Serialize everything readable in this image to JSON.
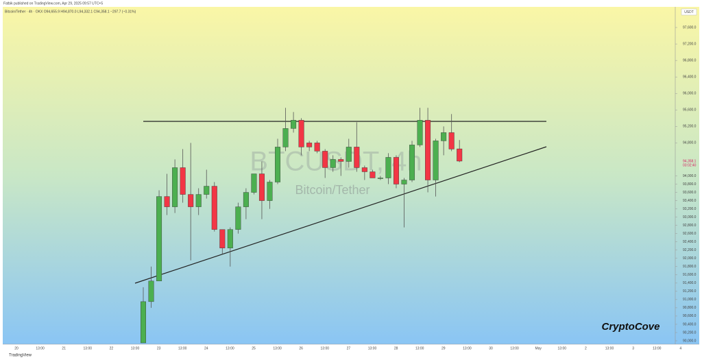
{
  "chart_data": {
    "type": "candlestick",
    "header": "Fatbik published on TradingView.com, Apr 29, 2025 09:57 UTC+5",
    "subtitle": "Bitcoin/Tether · 4h · OKX  O94,655.9  H94,870.0  L94,332.1  C94,358.1  −297.7 (−0.31%)",
    "watermark": "BTCUSDT, 4h",
    "watermark_name": "Bitcoin/Tether",
    "currency": "USDT",
    "last_price": "94,358.1",
    "countdown": "03:02:40",
    "signature": "CryptoCove",
    "footer": "TradingView",
    "up_color": "#4caf50",
    "down_color": "#f23645",
    "ylim": [
      89950,
      98100
    ],
    "yticks": [
      {
        "value": 97600,
        "label": "97,600.0"
      },
      {
        "value": 97200,
        "label": "97,200.0"
      },
      {
        "value": 96800,
        "label": "96,800.0"
      },
      {
        "value": 96400,
        "label": "96,400.0"
      },
      {
        "value": 96000,
        "label": "96,000.0"
      },
      {
        "value": 95600,
        "label": "95,600.0"
      },
      {
        "value": 95200,
        "label": "95,200.0"
      },
      {
        "value": 94800,
        "label": "94,800.0"
      },
      {
        "value": 94000,
        "label": "94,000.0"
      },
      {
        "value": 93800,
        "label": "93,800.0"
      },
      {
        "value": 93600,
        "label": "93,600.0"
      },
      {
        "value": 93400,
        "label": "93,400.0"
      },
      {
        "value": 93200,
        "label": "93,200.0"
      },
      {
        "value": 93000,
        "label": "93,000.0"
      },
      {
        "value": 92800,
        "label": "92,800.0"
      },
      {
        "value": 92600,
        "label": "92,600.0"
      },
      {
        "value": 92400,
        "label": "92,400.0"
      },
      {
        "value": 92200,
        "label": "92,200.0"
      },
      {
        "value": 92000,
        "label": "92,000.0"
      },
      {
        "value": 91800,
        "label": "91,800.0"
      },
      {
        "value": 91600,
        "label": "91,600.0"
      },
      {
        "value": 91400,
        "label": "91,400.0"
      },
      {
        "value": 91200,
        "label": "91,200.0"
      },
      {
        "value": 91000,
        "label": "91,000.0"
      },
      {
        "value": 90800,
        "label": "90,800.0"
      },
      {
        "value": 90600,
        "label": "90,600.0"
      },
      {
        "value": 90400,
        "label": "90,400.0"
      },
      {
        "value": 90200,
        "label": "90,200.0"
      },
      {
        "value": 90000,
        "label": "90,000.0"
      }
    ],
    "xlabels": [
      "20",
      "13:00",
      "21",
      "13:00",
      "22",
      "13:00",
      "23",
      "13:00",
      "24",
      "13:00",
      "25",
      "13:00",
      "26",
      "13:00",
      "27",
      "13:00",
      "28",
      "13:00",
      "29",
      "13:00",
      "30",
      "13:00",
      "May",
      "13:00",
      "2",
      "13:00",
      "3",
      "13:00",
      "4"
    ],
    "open": [
      89950,
      90950,
      91450,
      93500,
      93250,
      94200,
      93550,
      93250,
      93550,
      93750,
      92700,
      92250,
      92700,
      93250,
      93600,
      94050,
      93400,
      93850,
      94700,
      95150,
      95350,
      94800,
      94800,
      94600,
      94200,
      94400,
      94350,
      94700,
      94200,
      94100,
      93950,
      93950,
      94450,
      93800,
      93900,
      94750,
      95350,
      93900,
      94850,
      95050,
      94655.9
    ],
    "high": [
      91300,
      91800,
      93650,
      94050,
      94400,
      94650,
      94800,
      93700,
      94150,
      93850,
      92700,
      92750,
      93350,
      93700,
      94050,
      94350,
      93900,
      94900,
      95650,
      95550,
      95400,
      94850,
      94850,
      94650,
      94500,
      94450,
      94900,
      95300,
      94250,
      94150,
      94000,
      94550,
      94500,
      93950,
      94850,
      95650,
      95650,
      94900,
      95200,
      95500,
      94870
    ],
    "low": [
      89950,
      90800,
      91450,
      93050,
      93100,
      93350,
      91950,
      93050,
      93450,
      92650,
      92100,
      91800,
      92600,
      92950,
      93550,
      92950,
      93200,
      93800,
      94600,
      95050,
      94500,
      94600,
      94550,
      93950,
      94100,
      94000,
      94200,
      94100,
      93900,
      93950,
      93900,
      93800,
      93700,
      92750,
      93850,
      94700,
      93600,
      93500,
      94500,
      94600,
      94332.1
    ],
    "close": [
      90950,
      91450,
      93500,
      93250,
      94200,
      93550,
      93250,
      93550,
      93750,
      92700,
      92250,
      92700,
      93250,
      93600,
      94050,
      93400,
      93850,
      94700,
      95150,
      95350,
      94700,
      94700,
      94600,
      94200,
      94400,
      94350,
      94700,
      94200,
      94100,
      93950,
      93950,
      94450,
      93800,
      93900,
      94750,
      95350,
      93900,
      94850,
      95050,
      94650,
      94358.1
    ]
  }
}
